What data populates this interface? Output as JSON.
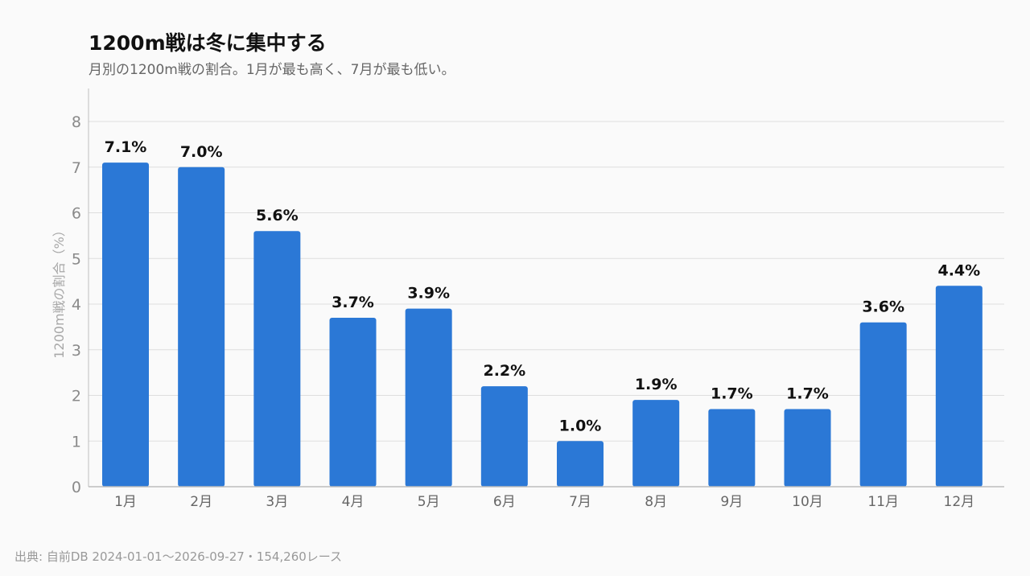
{
  "title": "1200m戦は冬に集中する",
  "subtitle": "月別の1200m戦の割合。1月が最も高く、7月が最も低い。",
  "source": "出典: 自前DB 2024-01-01〜2026-09-27・154,260レース",
  "colors": {
    "bar": "#2b78d6",
    "grid": "#dedede",
    "axis": "#bdbdbd",
    "background": "#fafafa"
  },
  "chart_data": {
    "type": "bar",
    "categories": [
      "1月",
      "2月",
      "3月",
      "4月",
      "5月",
      "6月",
      "7月",
      "8月",
      "9月",
      "10月",
      "11月",
      "12月"
    ],
    "values": [
      7.1,
      7.0,
      5.6,
      3.7,
      3.9,
      2.2,
      1.0,
      1.9,
      1.7,
      1.7,
      3.6,
      4.4
    ],
    "data_labels": [
      "7.1%",
      "7.0%",
      "5.6%",
      "3.7%",
      "3.9%",
      "2.2%",
      "1.0%",
      "1.9%",
      "1.7%",
      "1.7%",
      "3.6%",
      "4.4%"
    ],
    "ylabel": "1200m戦の割合（%）",
    "xlabel": "",
    "ylim": [
      0,
      8
    ],
    "yticks": [
      0,
      1,
      2,
      3,
      4,
      5,
      6,
      7,
      8
    ],
    "grid": true,
    "legend": "none"
  }
}
